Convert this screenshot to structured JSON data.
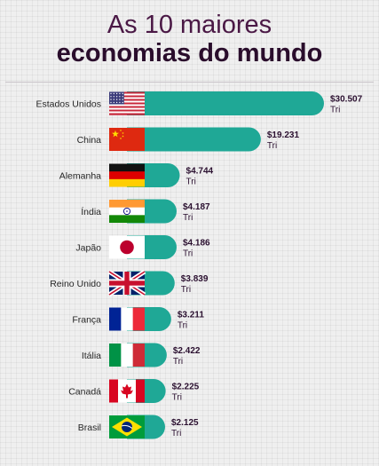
{
  "title": {
    "line1": "As 10 maiores",
    "line2": "economias do mundo"
  },
  "colors": {
    "bar": "#1fa896",
    "title": "#2a0d2c",
    "text": "#2b1030"
  },
  "chart_data": {
    "type": "bar",
    "orientation": "horizontal",
    "categories": [
      "Estados Unidos",
      "China",
      "Alemanha",
      "Índia",
      "Japão",
      "Reino Unido",
      "França",
      "Itália",
      "Canadá",
      "Brasil"
    ],
    "values": [
      30.507,
      19.231,
      4.744,
      4.187,
      4.186,
      3.839,
      3.211,
      2.422,
      2.225,
      2.125
    ],
    "value_labels": [
      "$30.507",
      "$19.231",
      "$4.744",
      "$4.187",
      "$4.186",
      "$3.839",
      "$3.211",
      "$2.422",
      "$2.225",
      "$2.125"
    ],
    "unit_label": "Tri",
    "flags": [
      "usa-flag",
      "china-flag",
      "germany-flag",
      "india-flag",
      "japan-flag",
      "uk-flag",
      "france-flag",
      "italy-flag",
      "canada-flag",
      "brazil-flag"
    ]
  }
}
